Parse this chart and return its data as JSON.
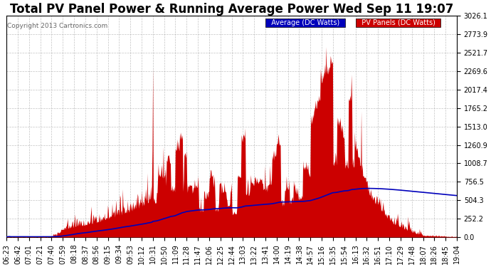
{
  "title": "Total PV Panel Power & Running Average Power Wed Sep 11 19:07",
  "copyright": "Copyright 2013 Cartronics.com",
  "legend_avg": "Average (DC Watts)",
  "legend_pv": "PV Panels (DC Watts)",
  "yticks": [
    0.0,
    252.2,
    504.3,
    756.5,
    1008.7,
    1260.9,
    1513.0,
    1765.2,
    2017.4,
    2269.6,
    2521.7,
    2773.9,
    3026.1
  ],
  "ymax": 3026.1,
  "bg_color": "#ffffff",
  "plot_bg_color": "#ffffff",
  "grid_color": "#aaaaaa",
  "pv_fill_color": "#cc0000",
  "avg_line_color": "#0000bb",
  "title_fontsize": 12,
  "tick_fontsize": 7,
  "xtick_labels": [
    "06:23",
    "06:42",
    "07:01",
    "07:21",
    "07:40",
    "07:59",
    "08:18",
    "08:37",
    "08:56",
    "09:15",
    "09:34",
    "09:53",
    "10:12",
    "10:31",
    "10:50",
    "11:09",
    "11:28",
    "11:47",
    "12:06",
    "12:25",
    "12:44",
    "13:03",
    "13:22",
    "13:41",
    "14:00",
    "14:19",
    "14:38",
    "14:57",
    "15:16",
    "15:35",
    "15:54",
    "16:13",
    "16:32",
    "16:51",
    "17:10",
    "17:29",
    "17:48",
    "18:07",
    "18:26",
    "18:45",
    "19:04"
  ]
}
